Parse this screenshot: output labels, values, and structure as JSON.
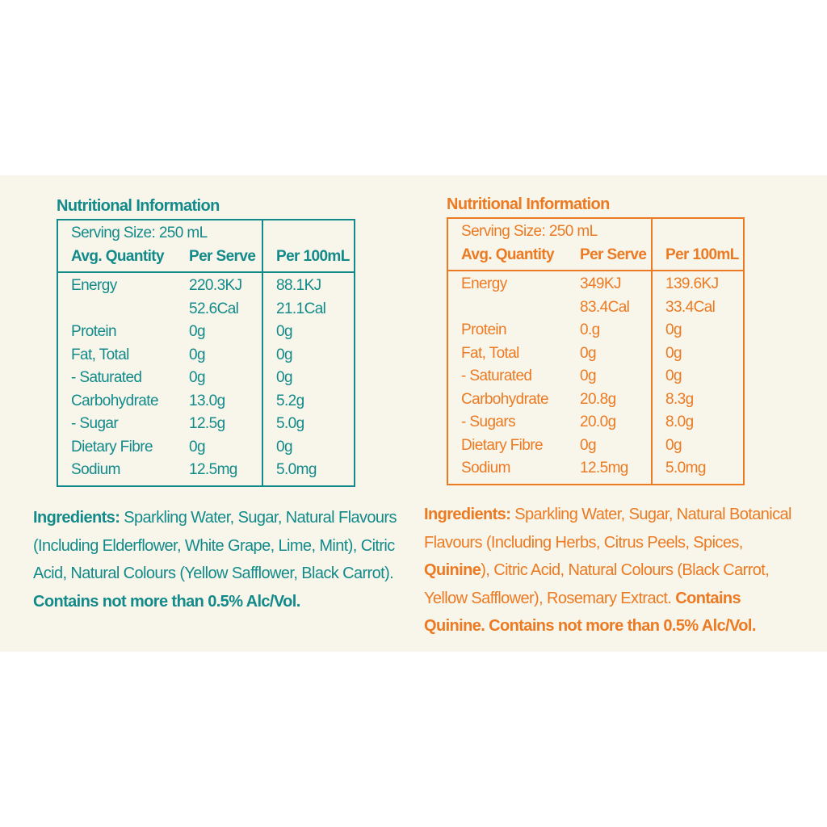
{
  "left": {
    "color": "#128a8a",
    "title": "Nutritional Information",
    "serving_size": "Serving Size: 250 mL",
    "headers": [
      "Avg. Quantity",
      "Per Serve",
      "Per 100mL"
    ],
    "rows": [
      [
        "Energy",
        "220.3KJ",
        "88.1KJ"
      ],
      [
        "",
        "52.6Cal",
        "21.1Cal"
      ],
      [
        "Protein",
        "0g",
        "0g"
      ],
      [
        "Fat, Total",
        "0g",
        "0g"
      ],
      [
        "- Saturated",
        "0g",
        "0g"
      ],
      [
        "Carbohydrate",
        "13.0g",
        "5.2g"
      ],
      [
        "- Sugar",
        "12.5g",
        "5.0g"
      ],
      [
        "Dietary Fibre",
        "0g",
        "0g"
      ],
      [
        "Sodium",
        "12.5mg",
        "5.0mg"
      ]
    ],
    "ingredients": {
      "label": "Ingredients:",
      "text": "Sparkling Water, Sugar, Natural Flavours (Including Elderflower, White Grape, Lime, Mint), Citric Acid, Natural Colours (Yellow Safflower, Black Carrot).",
      "contains": "Contains not more than 0.5% Alc/Vol."
    }
  },
  "right": {
    "color": "#ec7a23",
    "title": "Nutritional Information",
    "serving_size": "Serving Size: 250 mL",
    "headers": [
      "Avg. Quantity",
      "Per Serve",
      "Per 100mL"
    ],
    "rows": [
      [
        "Energy",
        "349KJ",
        "139.6KJ"
      ],
      [
        "",
        "83.4Cal",
        "33.4Cal"
      ],
      [
        "Protein",
        "0.g",
        "0g"
      ],
      [
        "Fat, Total",
        "0g",
        "0g"
      ],
      [
        "- Saturated",
        "0g",
        "0g"
      ],
      [
        "Carbohydrate",
        "20.8g",
        "8.3g"
      ],
      [
        "- Sugars",
        "20.0g",
        "8.0g"
      ],
      [
        "Dietary Fibre",
        "0g",
        "0g"
      ],
      [
        "Sodium",
        "12.5mg",
        "5.0mg"
      ]
    ],
    "ingredients": {
      "label": "Ingredients:",
      "text_before": "Sparkling Water, Sugar, Natural Botanical Flavours (Including Herbs, Citrus Peels, Spices, ",
      "quinine": "Quinine",
      "text_after": "), Citric Acid, Natural Colours (Black Carrot, Yellow Safflower), Rosemary Extract.",
      "contains_quinine": "Contains Quinine.",
      "contains": "Contains not more than 0.5% Alc/Vol."
    }
  }
}
